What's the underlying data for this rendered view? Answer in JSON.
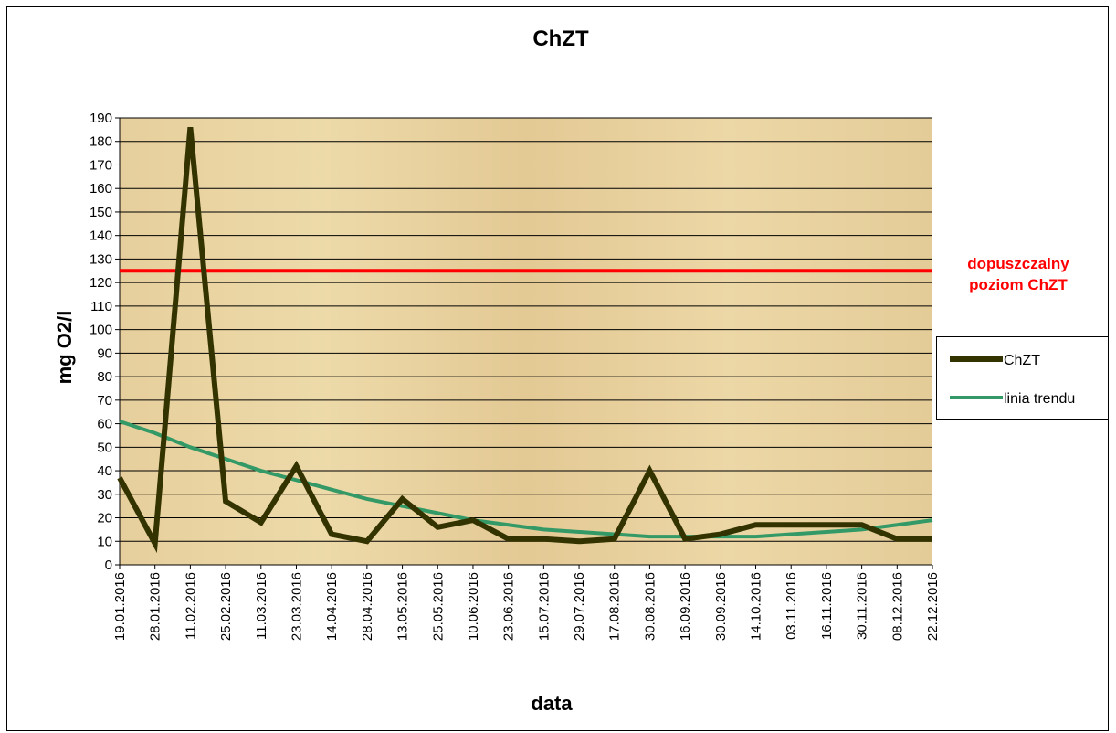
{
  "chart_data": {
    "type": "line",
    "title": "ChZT",
    "x_label": "data",
    "y_label": "mg O2/l",
    "categories": [
      "19.01.2016",
      "28.01.2016",
      "11.02.2016",
      "25.02.2016",
      "11.03.2016",
      "23.03.2016",
      "14.04.2016",
      "28.04.2016",
      "13.05.2016",
      "25.05.2016",
      "10.06.2016",
      "23.06.2016",
      "15.07.2016",
      "29.07.2016",
      "17.08.2016",
      "30.08.2016",
      "16.09.2016",
      "30.09.2016",
      "14.10.2016",
      "03.11.2016",
      "16.11.2016",
      "30.11.2016",
      "08.12.2016",
      "22.12.2016"
    ],
    "series": [
      {
        "name": "ChZT",
        "color": "#333300",
        "width": 6,
        "values": [
          37,
          9,
          186,
          27,
          18,
          42,
          13,
          10,
          28,
          16,
          19,
          11,
          11,
          10,
          11,
          40,
          11,
          13,
          17,
          17,
          17,
          17,
          11,
          11
        ]
      },
      {
        "name": "linia trendu",
        "color": "#339966",
        "width": 4,
        "values": [
          61,
          56,
          50,
          45,
          40,
          36,
          32,
          28,
          25,
          22,
          19,
          17,
          15,
          14,
          13,
          12,
          12,
          12,
          12,
          13,
          14,
          15,
          17,
          19
        ]
      }
    ],
    "threshold": {
      "value": 125,
      "color": "#ff0000",
      "label": [
        "dopuszczalny",
        "poziom ChZT"
      ]
    },
    "ylim": [
      0,
      190
    ],
    "yticks": [
      0,
      10,
      20,
      30,
      40,
      50,
      60,
      70,
      80,
      90,
      100,
      110,
      120,
      130,
      140,
      150,
      160,
      170,
      180,
      190
    ],
    "grid": true,
    "legend": "right"
  }
}
